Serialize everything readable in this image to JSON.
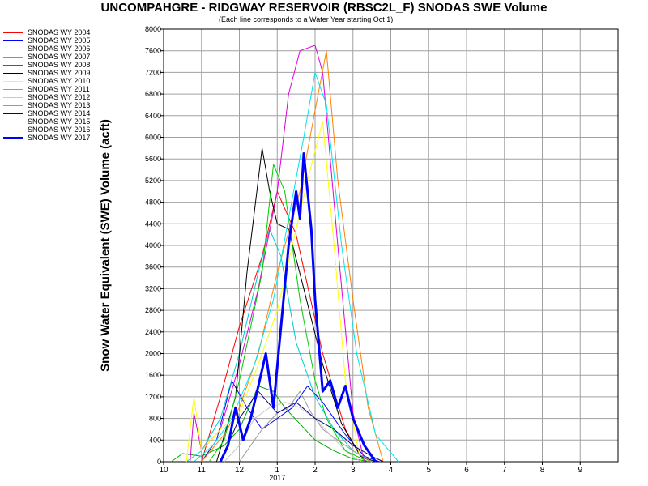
{
  "chart_data": {
    "type": "line",
    "title": "UNCOMPAHGRE - RIDGWAY RESERVOIR (RBSC2L_F) SNODAS SWE Volume",
    "subtitle": "(Each line corresponds to a Water Year starting Oct 1)",
    "ylabel": "Snow Water Equivalent (SWE) Volume (acft)",
    "xlabel": "",
    "x_ticks": [
      "10",
      "11",
      "12",
      "1",
      "2",
      "3",
      "4",
      "5",
      "6",
      "7",
      "8",
      "9"
    ],
    "x_sublabel": "2017",
    "ylim": [
      0,
      8000
    ],
    "y_ticks": [
      0,
      400,
      800,
      1200,
      1600,
      2000,
      2400,
      2800,
      3200,
      3600,
      4000,
      4400,
      4800,
      5200,
      5600,
      6000,
      6400,
      6800,
      7200,
      7600,
      8000
    ],
    "grid": true,
    "legend_position": "top-left",
    "series": [
      {
        "name": "SNODAS WY 2004",
        "color": "#ff0000",
        "width": 1,
        "x": [
          1.0,
          1.5,
          2.0,
          2.6,
          3.0,
          3.5,
          4.2,
          4.8,
          5.2,
          5.5
        ],
        "values": [
          0,
          1200,
          2500,
          3800,
          5000,
          4200,
          2000,
          600,
          100,
          0
        ]
      },
      {
        "name": "SNODAS WY 2005",
        "color": "#0000ff",
        "width": 1,
        "x": [
          1.0,
          1.4,
          1.8,
          2.2,
          2.6,
          3.0,
          3.4,
          3.8,
          4.2,
          4.8,
          5.3,
          5.7
        ],
        "values": [
          0,
          400,
          1500,
          1000,
          600,
          800,
          1000,
          1400,
          1100,
          500,
          100,
          0
        ]
      },
      {
        "name": "SNODAS WY 2006",
        "color": "#00aa00",
        "width": 1,
        "x": [
          0.2,
          0.5,
          1.0,
          1.6,
          2.0,
          2.5,
          2.9,
          3.2,
          3.6,
          4.0,
          4.5,
          5.0,
          5.5
        ],
        "values": [
          0,
          150,
          100,
          300,
          600,
          1400,
          1300,
          1000,
          700,
          400,
          200,
          50,
          0
        ]
      },
      {
        "name": "SNODAS WY 2007",
        "color": "#00cccc",
        "width": 1,
        "x": [
          0.6,
          1.0,
          1.5,
          2.0,
          2.5,
          2.8,
          3.1,
          3.5,
          4.0,
          4.5,
          5.0,
          5.5
        ],
        "values": [
          0,
          200,
          800,
          2000,
          3500,
          4300,
          3800,
          2200,
          1200,
          600,
          200,
          0
        ]
      },
      {
        "name": "SNODAS WY 2008",
        "color": "#dd00dd",
        "width": 1,
        "x": [
          0.7,
          0.8,
          1.0,
          1.5,
          2.0,
          2.5,
          3.0,
          3.3,
          3.6,
          4.0,
          4.2,
          4.6,
          5.0,
          5.3
        ],
        "values": [
          0,
          900,
          200,
          600,
          1800,
          3200,
          5000,
          6800,
          7600,
          7700,
          7200,
          4000,
          900,
          0
        ]
      },
      {
        "name": "SNODAS WY 2009",
        "color": "#000000",
        "width": 1,
        "x": [
          1.4,
          1.9,
          2.2,
          2.6,
          2.8,
          3.0,
          3.3,
          3.7,
          4.2,
          4.7,
          5.2,
          5.6
        ],
        "values": [
          0,
          1200,
          3500,
          5800,
          5000,
          4400,
          4300,
          3200,
          1800,
          700,
          100,
          0
        ]
      },
      {
        "name": "SNODAS WY 2010",
        "color": "#ffff00",
        "width": 1,
        "x": [
          0.6,
          0.8,
          1.0,
          1.5,
          2.0,
          2.5,
          3.0,
          3.4,
          3.8,
          4.2,
          4.5,
          4.8,
          5.2
        ],
        "values": [
          0,
          1200,
          200,
          600,
          900,
          1800,
          2800,
          4000,
          5200,
          6300,
          4000,
          1500,
          0
        ]
      },
      {
        "name": "SNODAS WY 2011",
        "color": "#999999",
        "width": 1,
        "x": [
          2.0,
          2.6,
          3.0,
          3.3,
          3.6,
          3.9,
          4.2,
          4.6,
          5.0,
          5.5
        ],
        "values": [
          0,
          600,
          900,
          1000,
          1300,
          900,
          600,
          400,
          200,
          0
        ]
      },
      {
        "name": "SNODAS WY 2012",
        "color": "#c8c8c8",
        "width": 1,
        "x": [
          1.6,
          2.0,
          2.4,
          2.8,
          3.2,
          3.6,
          4.0,
          4.4,
          4.8,
          5.2
        ],
        "values": [
          0,
          300,
          800,
          1000,
          1100,
          1000,
          800,
          500,
          200,
          0
        ]
      },
      {
        "name": "SNODAS WY 2013",
        "color": "#ff8000",
        "width": 1,
        "x": [
          1.0,
          1.6,
          2.0,
          2.5,
          3.0,
          3.6,
          4.0,
          4.3,
          4.6,
          5.0,
          5.4,
          5.8
        ],
        "values": [
          0,
          500,
          1000,
          2000,
          3500,
          5000,
          6500,
          7600,
          5200,
          3000,
          1000,
          0
        ]
      },
      {
        "name": "SNODAS WY 2014",
        "color": "#000080",
        "width": 1,
        "x": [
          1.5,
          2.0,
          2.5,
          3.0,
          3.5,
          4.0,
          4.5,
          5.0,
          5.5,
          5.8
        ],
        "values": [
          0,
          800,
          1300,
          900,
          1100,
          800,
          600,
          300,
          100,
          0
        ]
      },
      {
        "name": "SNODAS WY 2015",
        "color": "#00cc00",
        "width": 1,
        "x": [
          1.2,
          1.6,
          2.0,
          2.6,
          2.9,
          3.2,
          3.6,
          4.0,
          4.3,
          4.8,
          5.4
        ],
        "values": [
          0,
          400,
          1500,
          3500,
          5500,
          5000,
          3000,
          1500,
          800,
          200,
          0
        ]
      },
      {
        "name": "SNODAS WY 2016",
        "color": "#00e5ee",
        "width": 1,
        "x": [
          0.8,
          1.3,
          1.8,
          2.4,
          2.9,
          3.3,
          3.7,
          4.0,
          4.3,
          4.7,
          5.1,
          5.6,
          6.2
        ],
        "values": [
          0,
          300,
          800,
          1800,
          3000,
          4500,
          6000,
          7200,
          6600,
          4000,
          2000,
          500,
          0
        ]
      },
      {
        "name": "SNODAS WY 2017",
        "color": "#0000ff",
        "width": 3,
        "x": [
          1.5,
          1.7,
          1.9,
          2.1,
          2.3,
          2.5,
          2.7,
          2.9,
          3.1,
          3.3,
          3.5,
          3.6,
          3.7,
          3.9,
          4.0,
          4.2,
          4.4,
          4.6,
          4.8,
          5.0,
          5.3,
          5.6
        ],
        "values": [
          0,
          300,
          1000,
          400,
          800,
          1400,
          2000,
          1000,
          2500,
          4000,
          5000,
          4500,
          5700,
          4300,
          3000,
          1300,
          1500,
          1000,
          1400,
          800,
          300,
          0
        ]
      }
    ]
  }
}
